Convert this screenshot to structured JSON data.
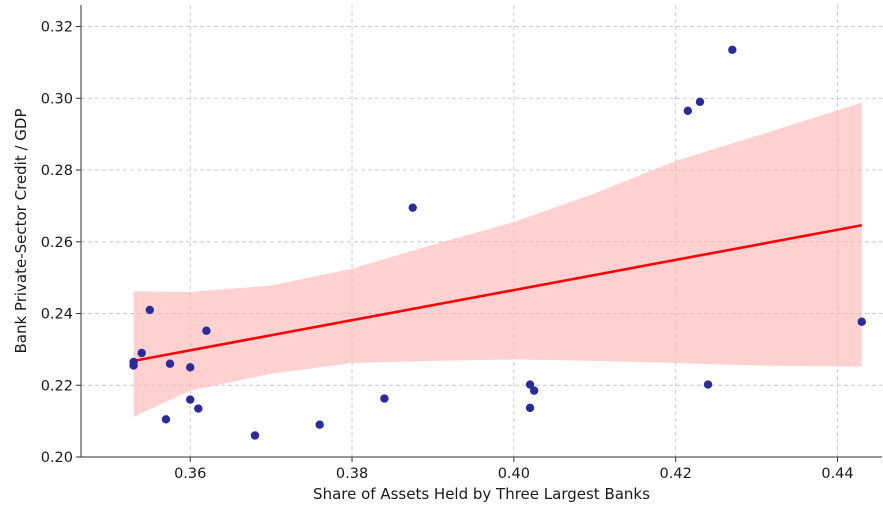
{
  "chart_data": {
    "type": "scatter",
    "title": "",
    "xlabel": "Share of Assets Held by Three Largest Banks",
    "ylabel": "Bank Private-Sector Credit / GDP",
    "xlim": [
      0.3465,
      0.4455
    ],
    "ylim": [
      0.2,
      0.326
    ],
    "xticks": [
      0.36,
      0.38,
      0.4,
      0.42,
      0.44
    ],
    "xtick_labels": [
      "0.36",
      "0.38",
      "0.40",
      "0.42",
      "0.44"
    ],
    "yticks": [
      0.2,
      0.22,
      0.24,
      0.26,
      0.28,
      0.3,
      0.32
    ],
    "ytick_labels": [
      "0.20",
      "0.22",
      "0.24",
      "0.26",
      "0.28",
      "0.30",
      "0.32"
    ],
    "grid": true,
    "points": {
      "color": "#2b2b9c",
      "x": [
        0.353,
        0.353,
        0.354,
        0.355,
        0.357,
        0.3575,
        0.36,
        0.36,
        0.361,
        0.362,
        0.368,
        0.376,
        0.384,
        0.3875,
        0.402,
        0.402,
        0.4025,
        0.4215,
        0.423,
        0.424,
        0.427,
        0.443
      ],
      "y": [
        0.2255,
        0.2265,
        0.229,
        0.241,
        0.2105,
        0.226,
        0.225,
        0.216,
        0.2135,
        0.2352,
        0.206,
        0.209,
        0.2163,
        0.2695,
        0.2137,
        0.2202,
        0.2185,
        0.2965,
        0.299,
        0.2202,
        0.3135,
        0.2377
      ]
    },
    "regression_line": {
      "color": "#ff0000",
      "x": [
        0.353,
        0.443
      ],
      "y": [
        0.2268,
        0.2646
      ]
    },
    "confidence_band": {
      "color": "#ffb3b3",
      "x": [
        0.353,
        0.36,
        0.37,
        0.38,
        0.39,
        0.4,
        0.41,
        0.42,
        0.43,
        0.443
      ],
      "upper": [
        0.2462,
        0.246,
        0.2478,
        0.2525,
        0.2592,
        0.2655,
        0.2735,
        0.2825,
        0.2895,
        0.2988
      ],
      "lower": [
        0.2112,
        0.2185,
        0.2232,
        0.2262,
        0.2268,
        0.2272,
        0.2268,
        0.2262,
        0.2255,
        0.2252
      ]
    }
  }
}
